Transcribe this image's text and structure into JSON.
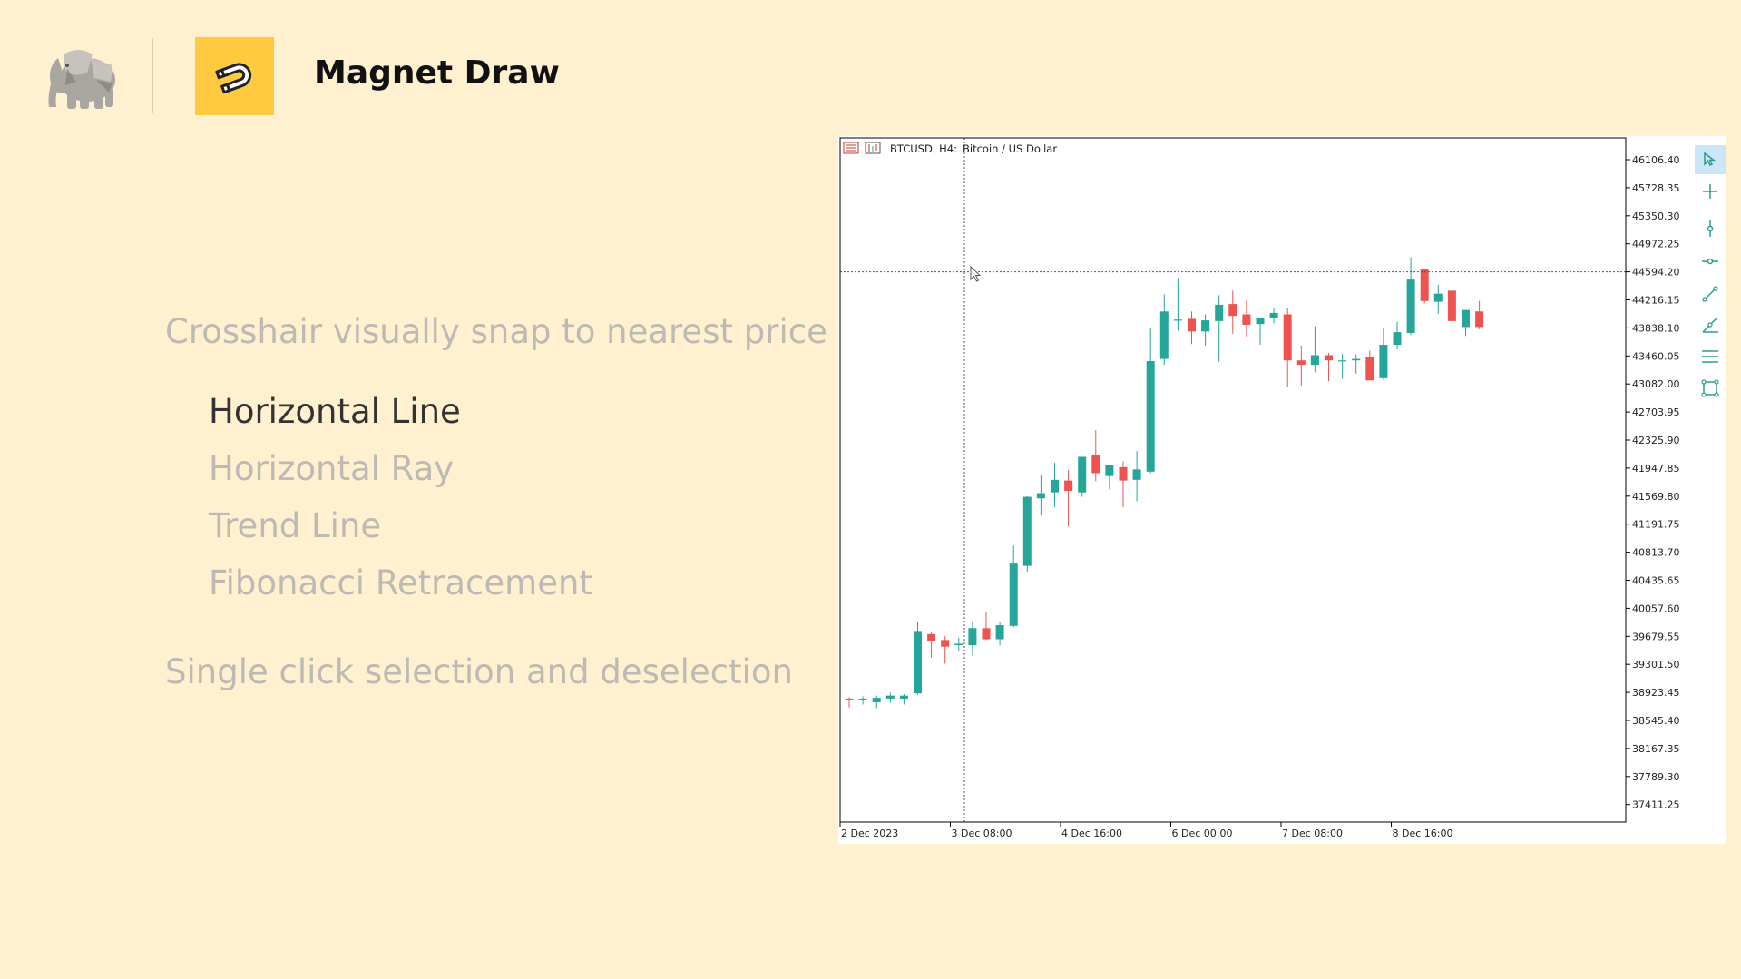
{
  "header": {
    "title": "Magnet Draw"
  },
  "features": {
    "snap_heading": "Crosshair visually snap to nearest price",
    "items": [
      {
        "label": "Horizontal Line",
        "active": true
      },
      {
        "label": "Horizontal Ray",
        "active": false
      },
      {
        "label": "Trend Line",
        "active": false
      },
      {
        "label": "Fibonacci Retracement",
        "active": false
      }
    ],
    "selection_heading": "Single click selection and deselection"
  },
  "chart": {
    "symbol_label": "BTCUSD, H4:",
    "description": "Bitcoin / US Dollar",
    "price_labels": [
      "46106.40",
      "45728.35",
      "45350.30",
      "44972.25",
      "44594.20",
      "44216.15",
      "43838.10",
      "43460.05",
      "43082.00",
      "42703.95",
      "42325.90",
      "41947.85",
      "41569.80",
      "41191.75",
      "40813.70",
      "40435.65",
      "40057.60",
      "39679.55",
      "39301.50",
      "38923.45",
      "38545.40",
      "38167.35",
      "37789.30",
      "37411.25"
    ],
    "time_labels": [
      "2 Dec 2023",
      "3 Dec 08:00",
      "4 Dec 16:00",
      "6 Dec 00:00",
      "7 Dec 08:00",
      "8 Dec 16:00"
    ],
    "crosshair_price": 44594.2,
    "colors": {
      "bull": "#26a69a",
      "bear": "#ef5350",
      "axis": "#000000"
    }
  },
  "chart_data": {
    "type": "candlestick",
    "symbol": "BTCUSD",
    "timeframe": "H4",
    "ylim": [
      37100,
      46300
    ],
    "ohlc": [
      [
        38840,
        38860,
        38720,
        38830
      ],
      [
        38830,
        38870,
        38760,
        38840
      ],
      [
        38790,
        38880,
        38710,
        38850
      ],
      [
        38840,
        38920,
        38780,
        38880
      ],
      [
        38840,
        38900,
        38760,
        38880
      ],
      [
        38910,
        39870,
        38890,
        39740
      ],
      [
        39710,
        39730,
        39390,
        39620
      ],
      [
        39630,
        39680,
        39310,
        39540
      ],
      [
        39560,
        39660,
        39480,
        39580
      ],
      [
        39560,
        39880,
        39420,
        39790
      ],
      [
        39790,
        40000,
        39630,
        39640
      ],
      [
        39640,
        39880,
        39560,
        39830
      ],
      [
        39820,
        40900,
        39800,
        40660
      ],
      [
        40630,
        41570,
        40550,
        41560
      ],
      [
        41540,
        41850,
        41310,
        41610
      ],
      [
        41620,
        42020,
        41420,
        41790
      ],
      [
        41780,
        41920,
        41160,
        41640
      ],
      [
        41620,
        42100,
        41560,
        42100
      ],
      [
        42120,
        42460,
        41770,
        41880
      ],
      [
        41840,
        41990,
        41660,
        41990
      ],
      [
        41960,
        42040,
        41420,
        41780
      ],
      [
        41790,
        42180,
        41500,
        41930
      ],
      [
        41900,
        43840,
        41880,
        43390
      ],
      [
        43420,
        44290,
        43340,
        44060
      ],
      [
        43950,
        44510,
        43800,
        43950
      ],
      [
        43960,
        44060,
        43620,
        43790
      ],
      [
        43790,
        44020,
        43600,
        43940
      ],
      [
        43930,
        44280,
        43380,
        44150
      ],
      [
        44160,
        44340,
        43760,
        44000
      ],
      [
        44020,
        44210,
        43720,
        43880
      ],
      [
        43890,
        43970,
        43610,
        43970
      ],
      [
        43970,
        44100,
        43900,
        44040
      ],
      [
        44020,
        44100,
        43040,
        43400
      ],
      [
        43400,
        43600,
        43060,
        43340
      ],
      [
        43340,
        43860,
        43240,
        43470
      ],
      [
        43470,
        43500,
        43120,
        43400
      ],
      [
        43400,
        43490,
        43150,
        43400
      ],
      [
        43400,
        43480,
        43220,
        43420
      ],
      [
        43440,
        43530,
        43160,
        43130
      ],
      [
        43160,
        43840,
        43140,
        43610
      ],
      [
        43610,
        43920,
        43550,
        43780
      ],
      [
        43770,
        44790,
        43740,
        44490
      ],
      [
        44630,
        44630,
        44170,
        44200
      ],
      [
        44190,
        44420,
        44030,
        44300
      ],
      [
        44340,
        44340,
        43760,
        43930
      ],
      [
        43850,
        44040,
        43730,
        44080
      ],
      [
        44060,
        44200,
        43820,
        43850
      ]
    ]
  }
}
